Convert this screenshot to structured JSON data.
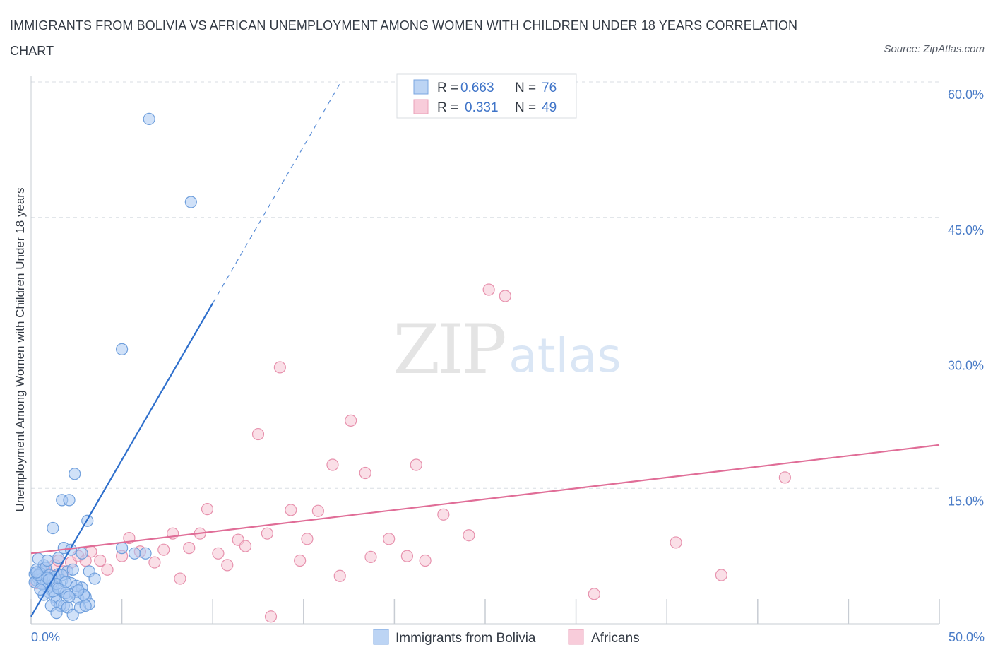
{
  "title": "IMMIGRANTS FROM BOLIVIA VS AFRICAN UNEMPLOYMENT AMONG WOMEN WITH CHILDREN UNDER 18 YEARS CORRELATION CHART",
  "source": "Source: ZipAtlas.com",
  "watermark": {
    "zip": "ZIP",
    "atlas": "atlas"
  },
  "colors": {
    "blue_fill": "#a9c8f2",
    "blue_stroke": "#6f9fdc",
    "blue_line": "#2e6fcc",
    "pink_fill": "#f6c4d4",
    "pink_stroke": "#e791ad",
    "pink_line": "#e06d97",
    "grid": "#d8dde3",
    "axis_text": "#4a7cc7"
  },
  "legend": {
    "r_label": "R =",
    "n_label": "N =",
    "series1": {
      "r": "0.663",
      "n": "76"
    },
    "series2": {
      "r": "0.331",
      "n": "49"
    }
  },
  "chart_data": {
    "type": "scatter",
    "xlabel": "",
    "ylabel": "Unemployment Among Women with Children Under 18 years",
    "xlim": [
      0,
      50
    ],
    "ylim": [
      0,
      60
    ],
    "x_tick_labels": [
      "0.0%",
      "50.0%"
    ],
    "y_tick_labels": [
      "15.0%",
      "30.0%",
      "45.0%",
      "60.0%"
    ],
    "y_ticks": [
      15,
      30,
      45,
      60
    ],
    "series": [
      {
        "name": "Immigrants from Bolivia",
        "color": "#a9c8f2",
        "points": [
          [
            0.2,
            5.5
          ],
          [
            0.3,
            6.0
          ],
          [
            0.4,
            5.0
          ],
          [
            0.5,
            4.5
          ],
          [
            0.6,
            5.8
          ],
          [
            0.7,
            6.5
          ],
          [
            0.8,
            5.2
          ],
          [
            0.9,
            4.0
          ],
          [
            1.0,
            3.5
          ],
          [
            1.1,
            5.0
          ],
          [
            1.2,
            4.2
          ],
          [
            1.3,
            3.0
          ],
          [
            1.4,
            2.5
          ],
          [
            1.5,
            5.5
          ],
          [
            1.6,
            3.8
          ],
          [
            1.7,
            4.8
          ],
          [
            1.8,
            2.0
          ],
          [
            2.0,
            3.2
          ],
          [
            2.2,
            4.5
          ],
          [
            2.4,
            3.5
          ],
          [
            2.6,
            2.8
          ],
          [
            2.8,
            4.0
          ],
          [
            3.0,
            3.0
          ],
          [
            3.2,
            2.2
          ],
          [
            0.3,
            4.8
          ],
          [
            0.5,
            5.6
          ],
          [
            0.6,
            4.4
          ],
          [
            0.8,
            6.2
          ],
          [
            1.0,
            5.4
          ],
          [
            1.2,
            3.6
          ],
          [
            0.4,
            7.2
          ],
          [
            0.9,
            7.0
          ],
          [
            1.5,
            7.3
          ],
          [
            1.8,
            8.4
          ],
          [
            2.2,
            8.2
          ],
          [
            2.8,
            7.8
          ],
          [
            3.2,
            5.8
          ],
          [
            3.5,
            5.0
          ],
          [
            2.0,
            5.8
          ],
          [
            2.5,
            4.2
          ],
          [
            1.3,
            5.2
          ],
          [
            1.6,
            2.0
          ],
          [
            2.0,
            1.8
          ],
          [
            2.3,
            1.0
          ],
          [
            0.7,
            3.2
          ],
          [
            1.1,
            2.0
          ],
          [
            1.4,
            1.2
          ],
          [
            2.7,
            1.8
          ],
          [
            3.0,
            2.0
          ],
          [
            0.2,
            4.6
          ],
          [
            0.5,
            3.8
          ],
          [
            1.9,
            3.4
          ],
          [
            2.1,
            3.0
          ],
          [
            2.9,
            3.2
          ],
          [
            1.7,
            5.4
          ],
          [
            0.6,
            5.0
          ],
          [
            1.2,
            10.6
          ],
          [
            1.7,
            13.7
          ],
          [
            2.1,
            13.7
          ],
          [
            2.4,
            16.6
          ],
          [
            3.1,
            11.4
          ],
          [
            5.0,
            8.4
          ],
          [
            5.7,
            7.8
          ],
          [
            6.3,
            7.8
          ],
          [
            5.0,
            30.4
          ],
          [
            6.5,
            55.9
          ],
          [
            8.8,
            46.7
          ],
          [
            0.4,
            5.4
          ],
          [
            0.9,
            5.1
          ],
          [
            1.4,
            4.4
          ],
          [
            1.9,
            4.6
          ],
          [
            2.6,
            3.7
          ],
          [
            0.3,
            5.7
          ],
          [
            1.0,
            4.9
          ],
          [
            1.5,
            3.9
          ],
          [
            2.3,
            6.0
          ]
        ]
      },
      {
        "name": "Africans",
        "color": "#f6c4d4",
        "points": [
          [
            0.3,
            4.5
          ],
          [
            0.5,
            5.2
          ],
          [
            0.7,
            6.0
          ],
          [
            0.9,
            5.5
          ],
          [
            1.1,
            4.8
          ],
          [
            1.3,
            6.5
          ],
          [
            1.5,
            7.0
          ],
          [
            1.8,
            5.8
          ],
          [
            2.2,
            6.8
          ],
          [
            2.6,
            7.5
          ],
          [
            3.0,
            7.0
          ],
          [
            3.3,
            8.0
          ],
          [
            3.8,
            7.0
          ],
          [
            4.2,
            6.0
          ],
          [
            5.0,
            7.5
          ],
          [
            5.4,
            9.5
          ],
          [
            6.0,
            8.0
          ],
          [
            6.8,
            6.8
          ],
          [
            7.3,
            8.2
          ],
          [
            7.8,
            10.0
          ],
          [
            8.2,
            5.0
          ],
          [
            8.7,
            8.4
          ],
          [
            9.3,
            10.0
          ],
          [
            9.7,
            12.7
          ],
          [
            10.3,
            7.8
          ],
          [
            10.8,
            6.5
          ],
          [
            11.4,
            9.3
          ],
          [
            11.8,
            8.6
          ],
          [
            12.5,
            21.0
          ],
          [
            13.0,
            10.0
          ],
          [
            13.2,
            0.8
          ],
          [
            13.7,
            28.4
          ],
          [
            14.3,
            12.6
          ],
          [
            14.8,
            7.0
          ],
          [
            15.2,
            9.4
          ],
          [
            15.8,
            12.5
          ],
          [
            16.6,
            17.6
          ],
          [
            17.0,
            5.3
          ],
          [
            17.6,
            22.5
          ],
          [
            18.4,
            16.7
          ],
          [
            18.7,
            7.4
          ],
          [
            19.7,
            9.4
          ],
          [
            20.7,
            7.5
          ],
          [
            21.2,
            17.6
          ],
          [
            21.7,
            7.0
          ],
          [
            22.7,
            12.1
          ],
          [
            24.1,
            9.8
          ],
          [
            25.2,
            37.0
          ],
          [
            26.1,
            36.3
          ]
        ]
      }
    ],
    "trend_lines": [
      {
        "series": "Immigrants from Bolivia",
        "solid": [
          [
            0,
            0.8
          ],
          [
            10,
            35.5
          ]
        ],
        "dashed": [
          [
            10,
            35.5
          ],
          [
            17.0,
            59.8
          ]
        ]
      },
      {
        "series": "Africans",
        "solid": [
          [
            0,
            7.8
          ],
          [
            50,
            19.8
          ]
        ]
      }
    ],
    "extra_africans_points": [
      [
        35.5,
        9.0
      ],
      [
        38.0,
        5.4
      ],
      [
        41.5,
        16.2
      ],
      [
        31.0,
        3.3
      ]
    ]
  },
  "bottom_legend": {
    "item1": "Immigrants from Bolivia",
    "item2": "Africans"
  }
}
